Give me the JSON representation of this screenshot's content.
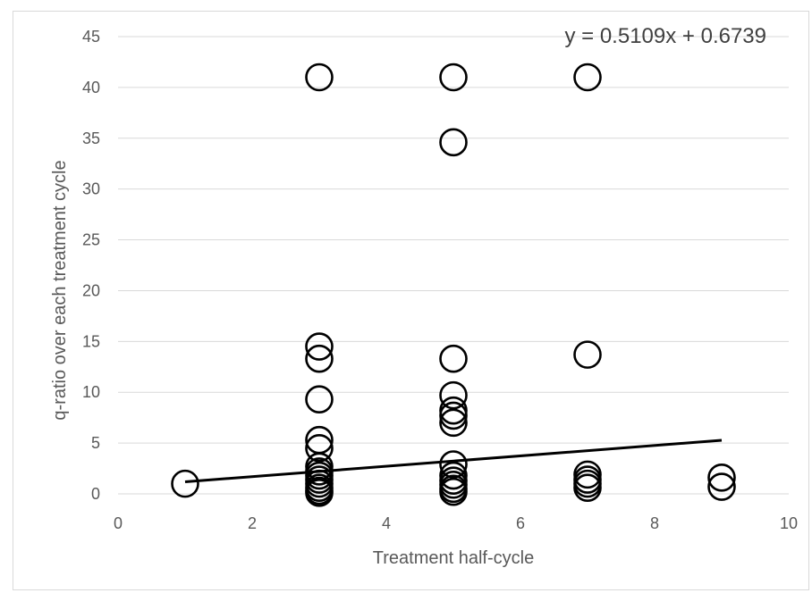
{
  "chart_data": {
    "type": "scatter",
    "title": "",
    "xlabel": "Treatment half-cycle",
    "ylabel": "q-ratio over each treatment cycle",
    "xlim": [
      0,
      10
    ],
    "ylim": [
      0,
      45
    ],
    "xticks": [
      0,
      2,
      4,
      6,
      8,
      10
    ],
    "yticks": [
      0,
      5,
      10,
      15,
      20,
      25,
      30,
      35,
      40,
      45
    ],
    "grid": "horizontal",
    "legend": "none",
    "series": [
      {
        "points": [
          {
            "x": 1,
            "y": 1.0
          },
          {
            "x": 3,
            "y": 41.0
          },
          {
            "x": 3,
            "y": 14.5
          },
          {
            "x": 3,
            "y": 13.3
          },
          {
            "x": 3,
            "y": 9.3
          },
          {
            "x": 3,
            "y": 5.3
          },
          {
            "x": 3,
            "y": 4.5
          },
          {
            "x": 3,
            "y": 2.7
          },
          {
            "x": 3,
            "y": 2.2
          },
          {
            "x": 3,
            "y": 1.8
          },
          {
            "x": 3,
            "y": 1.4
          },
          {
            "x": 3,
            "y": 1.0
          },
          {
            "x": 3,
            "y": 0.6
          },
          {
            "x": 3,
            "y": 0.3
          },
          {
            "x": 3,
            "y": 0.1
          },
          {
            "x": 5,
            "y": 41.0
          },
          {
            "x": 5,
            "y": 34.6
          },
          {
            "x": 5,
            "y": 13.3
          },
          {
            "x": 5,
            "y": 9.7
          },
          {
            "x": 5,
            "y": 8.2
          },
          {
            "x": 5,
            "y": 7.7
          },
          {
            "x": 5,
            "y": 7.0
          },
          {
            "x": 5,
            "y": 2.9
          },
          {
            "x": 5,
            "y": 1.8
          },
          {
            "x": 5,
            "y": 1.3
          },
          {
            "x": 5,
            "y": 0.9
          },
          {
            "x": 5,
            "y": 0.5
          },
          {
            "x": 5,
            "y": 0.2
          },
          {
            "x": 7,
            "y": 41.0
          },
          {
            "x": 7,
            "y": 13.7
          },
          {
            "x": 7,
            "y": 1.9
          },
          {
            "x": 7,
            "y": 1.4
          },
          {
            "x": 7,
            "y": 1.0
          },
          {
            "x": 7,
            "y": 0.6
          },
          {
            "x": 9,
            "y": 1.6
          },
          {
            "x": 9,
            "y": 0.7
          }
        ]
      }
    ],
    "trendline": {
      "slope": 0.5109,
      "intercept": 0.6739,
      "x_range": [
        1,
        9
      ],
      "equation": "y = 0.5109x + 0.6739"
    },
    "colors": {
      "marker": "#000000",
      "trendline": "#000000",
      "grid": "#d9d9d9",
      "axis": "#d9d9d9",
      "text": "#595959"
    }
  }
}
